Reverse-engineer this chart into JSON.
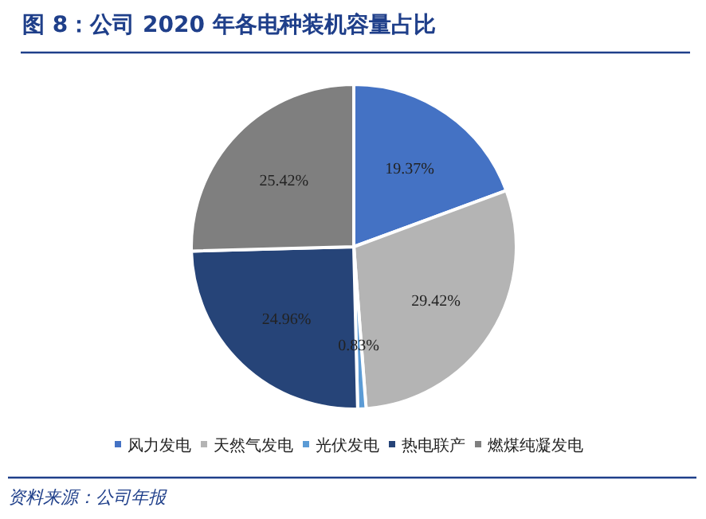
{
  "chart_data": {
    "type": "pie",
    "title": "图 8：公司 2020 年各电种装机容量占比",
    "categories": [
      "风力发电",
      "天然气发电",
      "光伏发电",
      "热电联产",
      "燃煤纯凝发电"
    ],
    "values": [
      19.37,
      29.42,
      0.83,
      24.96,
      25.42
    ],
    "value_labels": [
      "19.37%",
      "29.42%",
      "0.83%",
      "24.96%",
      "25.42%"
    ],
    "colors": [
      "#4472c4",
      "#b4b4b4",
      "#5b9bd5",
      "#264478",
      "#7f7f7f"
    ],
    "legend": "bottom",
    "annotations": [
      "资料来源：公司年报"
    ]
  }
}
